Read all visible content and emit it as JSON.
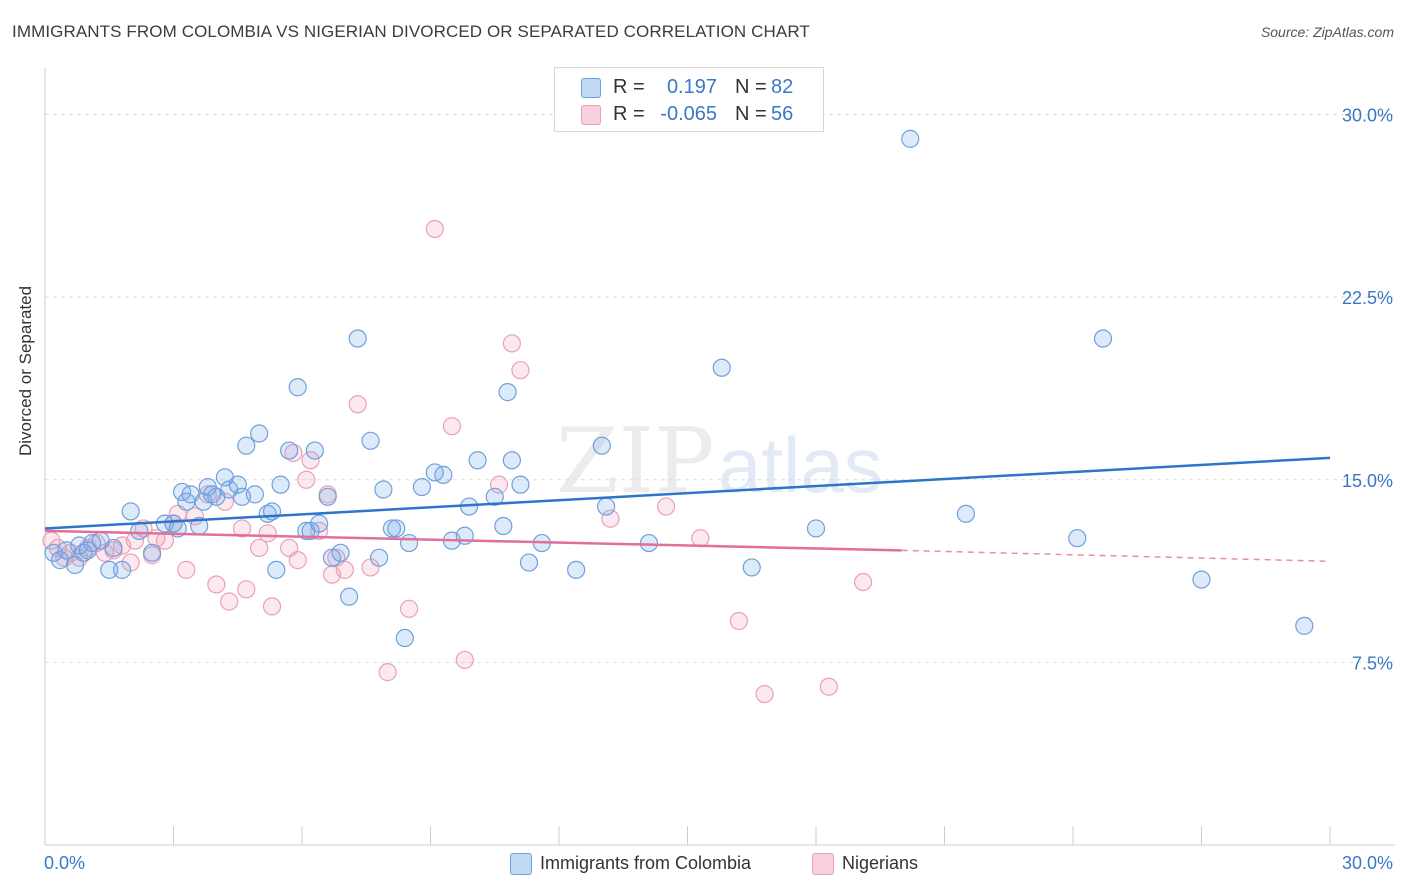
{
  "title": "IMMIGRANTS FROM COLOMBIA VS NIGERIAN DIVORCED OR SEPARATED CORRELATION CHART",
  "source": "Source: ZipAtlas.com",
  "watermark": {
    "zip": "ZIP",
    "atlas": "atlas"
  },
  "legend_top": [
    {
      "r_label": "R =",
      "r_value": "0.197",
      "n_label": "N =",
      "n_value": "82",
      "color": "#6fa8e8"
    },
    {
      "r_label": "R =",
      "r_value": "-0.065",
      "n_label": "N =",
      "n_value": "56",
      "color": "#f0a0bc"
    }
  ],
  "legend_bottom": [
    {
      "label": "Immigrants from Colombia",
      "color": "#6fa8e8"
    },
    {
      "label": "Nigerians",
      "color": "#f0a0bc"
    }
  ],
  "colors": {
    "blue_fill": "rgba(120,170,230,0.25)",
    "blue_stroke": "#6fa0dc",
    "blue_line": "#2e74c9",
    "pink_fill": "rgba(240,150,180,0.22)",
    "pink_stroke": "#eba0b8",
    "pink_line": "#e0709a",
    "axis_text": "#3a78c6",
    "grid": "#dddddd"
  },
  "chart_data": {
    "type": "scatter",
    "title": "IMMIGRANTS FROM COLOMBIA VS NIGERIAN DIVORCED OR SEPARATED CORRELATION CHART",
    "xlabel": "",
    "ylabel": "Divorced or Separated",
    "xlim": [
      0,
      30
    ],
    "ylim": [
      0,
      31.5
    ],
    "x_tick_labels": [
      "0.0%",
      "30.0%"
    ],
    "y_ticks": [
      7.5,
      15.0,
      22.5,
      30.0
    ],
    "y_tick_labels": [
      "7.5%",
      "15.0%",
      "22.5%",
      "30.0%"
    ],
    "grid": true,
    "legend_position": "top-center",
    "series": [
      {
        "name": "Immigrants from Colombia",
        "color": "#6fa8e8",
        "trend": {
          "x": [
            0,
            30
          ],
          "y": [
            13.0,
            15.9
          ],
          "style": "solid"
        },
        "points": [
          [
            0.2,
            12.0
          ],
          [
            0.35,
            11.7
          ],
          [
            0.5,
            12.1
          ],
          [
            0.7,
            11.5
          ],
          [
            0.8,
            12.3
          ],
          [
            0.9,
            12.0
          ],
          [
            1.0,
            12.1
          ],
          [
            1.1,
            12.4
          ],
          [
            1.3,
            12.5
          ],
          [
            1.5,
            11.3
          ],
          [
            1.6,
            12.2
          ],
          [
            1.8,
            11.3
          ],
          [
            2.0,
            13.7
          ],
          [
            2.2,
            12.9
          ],
          [
            2.5,
            12.0
          ],
          [
            2.8,
            13.2
          ],
          [
            3.0,
            13.2
          ],
          [
            3.1,
            13.0
          ],
          [
            3.2,
            14.5
          ],
          [
            3.3,
            14.1
          ],
          [
            3.4,
            14.4
          ],
          [
            3.6,
            13.1
          ],
          [
            3.7,
            14.1
          ],
          [
            3.8,
            14.7
          ],
          [
            3.9,
            14.4
          ],
          [
            4.0,
            14.3
          ],
          [
            4.2,
            15.1
          ],
          [
            4.3,
            14.6
          ],
          [
            4.5,
            14.8
          ],
          [
            4.6,
            14.3
          ],
          [
            4.7,
            16.4
          ],
          [
            4.9,
            14.4
          ],
          [
            5.0,
            16.9
          ],
          [
            5.2,
            13.6
          ],
          [
            5.3,
            13.7
          ],
          [
            5.4,
            11.3
          ],
          [
            5.5,
            14.8
          ],
          [
            5.7,
            16.2
          ],
          [
            5.9,
            18.8
          ],
          [
            6.1,
            12.9
          ],
          [
            6.2,
            12.9
          ],
          [
            6.3,
            16.2
          ],
          [
            6.4,
            13.2
          ],
          [
            6.6,
            14.3
          ],
          [
            6.7,
            11.8
          ],
          [
            6.9,
            12.0
          ],
          [
            7.1,
            10.2
          ],
          [
            7.3,
            20.8
          ],
          [
            7.6,
            16.6
          ],
          [
            7.8,
            11.8
          ],
          [
            7.9,
            14.6
          ],
          [
            8.1,
            13.0
          ],
          [
            8.2,
            13.0
          ],
          [
            8.4,
            8.5
          ],
          [
            8.5,
            12.4
          ],
          [
            8.8,
            14.7
          ],
          [
            9.1,
            15.3
          ],
          [
            9.3,
            15.2
          ],
          [
            9.5,
            12.5
          ],
          [
            9.8,
            12.7
          ],
          [
            9.9,
            13.9
          ],
          [
            10.1,
            15.8
          ],
          [
            10.5,
            14.3
          ],
          [
            10.7,
            13.1
          ],
          [
            10.8,
            18.6
          ],
          [
            10.9,
            15.8
          ],
          [
            11.1,
            14.8
          ],
          [
            11.3,
            11.6
          ],
          [
            11.6,
            12.4
          ],
          [
            12.4,
            11.3
          ],
          [
            13.0,
            16.4
          ],
          [
            13.1,
            13.9
          ],
          [
            14.1,
            12.4
          ],
          [
            15.8,
            19.6
          ],
          [
            16.5,
            11.4
          ],
          [
            18.0,
            13.0
          ],
          [
            20.2,
            29.0
          ],
          [
            21.5,
            13.6
          ],
          [
            24.1,
            12.6
          ],
          [
            24.7,
            20.8
          ],
          [
            27.0,
            10.9
          ],
          [
            29.4,
            9.0
          ]
        ]
      },
      {
        "name": "Nigerians",
        "color": "#f0a0bc",
        "trend": {
          "x": [
            0,
            20
          ],
          "y": [
            12.9,
            12.1
          ],
          "style": "solid",
          "dashed_extension_to": [
            30,
            11.65
          ]
        },
        "points": [
          [
            0.15,
            12.5
          ],
          [
            0.3,
            12.2
          ],
          [
            0.45,
            11.8
          ],
          [
            0.6,
            12.0
          ],
          [
            0.8,
            11.8
          ],
          [
            1.0,
            12.2
          ],
          [
            1.2,
            12.4
          ],
          [
            1.4,
            12.0
          ],
          [
            1.6,
            12.1
          ],
          [
            1.8,
            12.3
          ],
          [
            2.0,
            11.6
          ],
          [
            2.1,
            12.5
          ],
          [
            2.3,
            13.0
          ],
          [
            2.5,
            11.9
          ],
          [
            2.6,
            12.6
          ],
          [
            2.8,
            12.5
          ],
          [
            3.0,
            13.2
          ],
          [
            3.1,
            13.6
          ],
          [
            3.3,
            11.3
          ],
          [
            3.5,
            13.5
          ],
          [
            3.8,
            14.4
          ],
          [
            4.0,
            10.7
          ],
          [
            4.2,
            14.1
          ],
          [
            4.3,
            10.0
          ],
          [
            4.6,
            13.0
          ],
          [
            4.7,
            10.5
          ],
          [
            5.0,
            12.2
          ],
          [
            5.2,
            12.8
          ],
          [
            5.3,
            9.8
          ],
          [
            5.7,
            12.2
          ],
          [
            5.8,
            16.1
          ],
          [
            5.9,
            11.7
          ],
          [
            6.1,
            15.0
          ],
          [
            6.2,
            15.8
          ],
          [
            6.4,
            12.9
          ],
          [
            6.6,
            14.4
          ],
          [
            6.7,
            11.1
          ],
          [
            6.8,
            11.8
          ],
          [
            7.0,
            11.3
          ],
          [
            7.3,
            18.1
          ],
          [
            7.6,
            11.4
          ],
          [
            8.0,
            7.1
          ],
          [
            8.5,
            9.7
          ],
          [
            9.1,
            25.3
          ],
          [
            9.5,
            17.2
          ],
          [
            9.8,
            7.6
          ],
          [
            10.6,
            14.8
          ],
          [
            10.9,
            20.6
          ],
          [
            11.1,
            19.5
          ],
          [
            13.2,
            13.4
          ],
          [
            14.5,
            13.9
          ],
          [
            15.3,
            12.6
          ],
          [
            16.2,
            9.2
          ],
          [
            16.8,
            6.2
          ],
          [
            18.3,
            6.5
          ],
          [
            19.1,
            10.8
          ]
        ]
      }
    ]
  }
}
